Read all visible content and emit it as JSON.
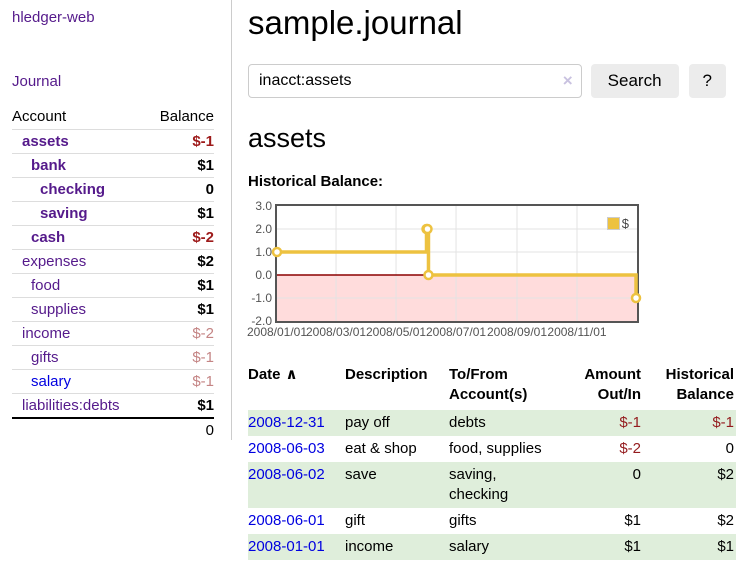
{
  "app": {
    "brand": "hledger-web",
    "nav_journal": "Journal"
  },
  "sidebar": {
    "header": {
      "account": "Account",
      "balance": "Balance"
    },
    "accounts": [
      {
        "name": "assets",
        "depth": 1,
        "balance": "$-1",
        "bold": true,
        "neg": "strong"
      },
      {
        "name": "bank",
        "depth": 2,
        "balance": "$1",
        "bold": true,
        "neg": ""
      },
      {
        "name": "checking",
        "depth": 3,
        "balance": "0",
        "bold": true,
        "neg": ""
      },
      {
        "name": "saving",
        "depth": 3,
        "balance": "$1",
        "bold": true,
        "neg": ""
      },
      {
        "name": "cash",
        "depth": 2,
        "balance": "$-2",
        "bold": true,
        "neg": "strong"
      },
      {
        "name": "expenses",
        "depth": 1,
        "balance": "$2",
        "bold": false,
        "neg": ""
      },
      {
        "name": "food",
        "depth": 2,
        "balance": "$1",
        "bold": false,
        "neg": ""
      },
      {
        "name": "supplies",
        "depth": 2,
        "balance": "$1",
        "bold": false,
        "neg": ""
      },
      {
        "name": "income",
        "depth": 1,
        "balance": "$-2",
        "bold": false,
        "neg": "muted"
      },
      {
        "name": "gifts",
        "depth": 2,
        "balance": "$-1",
        "bold": false,
        "neg": "muted"
      },
      {
        "name": "salary",
        "depth": 2,
        "balance": "$-1",
        "bold": false,
        "neg": "muted",
        "link_color": "blue"
      },
      {
        "name": "liabilities:debts",
        "depth": 1,
        "balance": "$1",
        "bold": false,
        "neg": ""
      }
    ],
    "total": "0"
  },
  "header": {
    "title": "sample.journal"
  },
  "search": {
    "value": "inacct:assets",
    "clear_icon": "×",
    "button_label": "Search",
    "help_label": "?"
  },
  "main": {
    "account_title": "assets",
    "chart_label": "Historical Balance:"
  },
  "chart_data": {
    "type": "line",
    "style": "steps",
    "title": "Historical Balance:",
    "series": [
      {
        "name": "$",
        "color": "#edc240",
        "points": [
          [
            "2008-01-01",
            1
          ],
          [
            "2008-06-01",
            2
          ],
          [
            "2008-06-02",
            2
          ],
          [
            "2008-06-03",
            0
          ],
          [
            "2008-12-31",
            -1
          ]
        ]
      }
    ],
    "ylim": [
      -2,
      3
    ],
    "y_ticks": [
      3.0,
      2.0,
      1.0,
      0.0,
      -1.0,
      -2.0
    ],
    "x_ticks": [
      "2008/01/01",
      "2008/03/01",
      "2008/05/01",
      "2008/07/01",
      "2008/09/01",
      "2008/11/01"
    ],
    "x_range": [
      "2008-01-01",
      "2009-01-01"
    ],
    "legend_position": "top-right",
    "grid": true,
    "colors": {
      "negative_region": "#ffdcdc",
      "zero_line": "#8b0000",
      "gridline": "#e3e3e3",
      "border": "#555555"
    }
  },
  "register": {
    "headers": {
      "date": "Date",
      "sort_indicator": "∧",
      "description": "Description",
      "accounts": "To/From Account(s)",
      "amount": "Amount Out/In",
      "balance": "Historical Balance"
    },
    "rows": [
      {
        "date": "2008-12-31",
        "description": "pay off",
        "accounts": "debts",
        "amount": "$-1",
        "amount_neg": true,
        "balance": "$-1",
        "balance_neg": true
      },
      {
        "date": "2008-06-03",
        "description": "eat & shop",
        "accounts": "food, supplies",
        "amount": "$-2",
        "amount_neg": true,
        "balance": "0",
        "balance_neg": false
      },
      {
        "date": "2008-06-02",
        "description": "save",
        "accounts": "saving, checking",
        "amount": "0",
        "amount_neg": false,
        "balance": "$2",
        "balance_neg": false
      },
      {
        "date": "2008-06-01",
        "description": "gift",
        "accounts": "gifts",
        "amount": "$1",
        "amount_neg": false,
        "balance": "$2",
        "balance_neg": false
      },
      {
        "date": "2008-01-01",
        "description": "income",
        "accounts": "salary",
        "amount": "$1",
        "amount_neg": false,
        "balance": "$1",
        "balance_neg": false
      }
    ]
  }
}
